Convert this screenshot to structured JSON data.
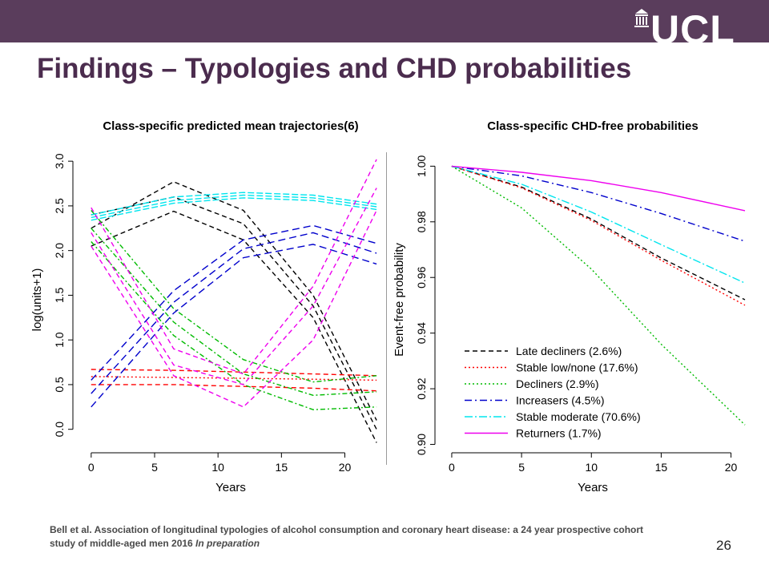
{
  "slide": {
    "title": "Findings – Typologies and CHD probabilities",
    "logo_text": "UCL",
    "page_number": "26",
    "citation_main": "Bell et al. Association of longitudinal typologies of alcohol consumption and coronary heart disease: a 24 year prospective cohort study of middle-aged men 2016 ",
    "citation_italic": "In preparation"
  },
  "chart_data": [
    {
      "type": "line",
      "title": "Class-specific predicted mean trajectories(6)",
      "xlabel": "Years",
      "ylabel": "log(units+1)",
      "xlim": [
        -1,
        23
      ],
      "ylim": [
        -0.2,
        3.1
      ],
      "xticks": [
        0,
        5,
        10,
        15,
        20
      ],
      "yticks": [
        0.0,
        0.5,
        1.0,
        1.5,
        2.0,
        2.5,
        3.0
      ],
      "ytick_labels": [
        "0.0",
        "0.5",
        "1.0",
        "1.5",
        "2.0",
        "2.5",
        "3.0"
      ],
      "grid": false,
      "series": [
        {
          "color": "#000000",
          "dash": "6,4",
          "x": [
            0,
            6.5,
            12,
            17.5,
            22.5
          ],
          "y": [
            2.25,
            2.77,
            2.45,
            1.5,
            0.1
          ]
        },
        {
          "color": "#000000",
          "dash": "6,4",
          "x": [
            0,
            6.5,
            12,
            17.5,
            22.5
          ],
          "y": [
            2.05,
            2.44,
            2.12,
            1.25,
            -0.15
          ]
        },
        {
          "color": "#000000",
          "dash": "6,4",
          "x": [
            0,
            6.5,
            12,
            17.5,
            22.5
          ],
          "y": [
            2.4,
            2.6,
            2.3,
            1.38,
            0.0
          ]
        },
        {
          "color": "#ff0000",
          "dash": "6,4",
          "x": [
            0,
            6.5,
            12,
            17.5,
            22.5
          ],
          "y": [
            0.67,
            0.66,
            0.64,
            0.62,
            0.6
          ]
        },
        {
          "color": "#ff0000",
          "dash": "2,3",
          "x": [
            0,
            6.5,
            12,
            17.5,
            22.5
          ],
          "y": [
            0.59,
            0.58,
            0.57,
            0.56,
            0.55
          ]
        },
        {
          "color": "#ff0000",
          "dash": "6,4",
          "x": [
            0,
            6.5,
            12,
            17.5,
            22.5
          ],
          "y": [
            0.5,
            0.5,
            0.48,
            0.46,
            0.43
          ]
        },
        {
          "color": "#00bb00",
          "dash": "6,3,2,3",
          "x": [
            0,
            6.5,
            12,
            17.5,
            22.5
          ],
          "y": [
            2.45,
            1.35,
            0.78,
            0.53,
            0.6
          ]
        },
        {
          "color": "#00bb00",
          "dash": "6,3,2,3",
          "x": [
            0,
            6.5,
            12,
            17.5,
            22.5
          ],
          "y": [
            2.25,
            1.2,
            0.62,
            0.38,
            0.42
          ]
        },
        {
          "color": "#00bb00",
          "dash": "6,3,2,3",
          "x": [
            0,
            6.5,
            12,
            17.5,
            22.5
          ],
          "y": [
            2.1,
            1.05,
            0.5,
            0.22,
            0.25
          ]
        },
        {
          "color": "#0000cc",
          "dash": "9,5",
          "x": [
            0,
            6.5,
            12,
            17.5,
            22.5
          ],
          "y": [
            0.55,
            1.55,
            2.12,
            2.28,
            2.08
          ]
        },
        {
          "color": "#0000cc",
          "dash": "9,5",
          "x": [
            0,
            6.5,
            12,
            17.5,
            22.5
          ],
          "y": [
            0.4,
            1.42,
            2.02,
            2.2,
            1.97
          ]
        },
        {
          "color": "#0000cc",
          "dash": "9,5",
          "x": [
            0,
            6.5,
            12,
            17.5,
            22.5
          ],
          "y": [
            0.25,
            1.3,
            1.92,
            2.07,
            1.85
          ]
        },
        {
          "color": "#00e5ee",
          "dash": "8,3",
          "x": [
            0,
            6.5,
            12,
            17.5,
            22.5
          ],
          "y": [
            2.4,
            2.6,
            2.65,
            2.62,
            2.52
          ]
        },
        {
          "color": "#00e5ee",
          "dash": "8,3",
          "x": [
            0,
            6.5,
            12,
            17.5,
            22.5
          ],
          "y": [
            2.37,
            2.56,
            2.62,
            2.59,
            2.49
          ]
        },
        {
          "color": "#00e5ee",
          "dash": "8,3",
          "x": [
            0,
            6.5,
            12,
            17.5,
            22.5
          ],
          "y": [
            2.34,
            2.53,
            2.59,
            2.56,
            2.46
          ]
        },
        {
          "color": "#ee00ee",
          "dash": "6,4",
          "x": [
            0,
            6.5,
            12,
            17.5,
            22.5
          ],
          "y": [
            2.48,
            0.9,
            0.62,
            1.6,
            3.02
          ]
        },
        {
          "color": "#ee00ee",
          "dash": "6,4",
          "x": [
            0,
            6.5,
            12,
            17.5,
            22.5
          ],
          "y": [
            2.2,
            0.72,
            0.5,
            1.38,
            2.7
          ]
        },
        {
          "color": "#ee00ee",
          "dash": "6,4",
          "x": [
            0,
            6.5,
            12,
            17.5,
            22.5
          ],
          "y": [
            2.05,
            0.6,
            0.25,
            1.0,
            2.45
          ]
        }
      ]
    },
    {
      "type": "line",
      "title": "Class-specific CHD-free probabilities",
      "xlabel": "Years",
      "ylabel": "Event-free probability",
      "xlim": [
        -0.8,
        21
      ],
      "ylim": [
        0.899,
        1.005
      ],
      "xticks": [
        0,
        5,
        10,
        15,
        20
      ],
      "yticks": [
        0.9,
        0.92,
        0.94,
        0.96,
        0.98,
        1.0
      ],
      "ytick_labels": [
        "0.90",
        "0.92",
        "0.94",
        "0.96",
        "0.98",
        "1.00"
      ],
      "grid": false,
      "legend_position": "bottom-left",
      "series": [
        {
          "name": "Late decliners (2.6%)",
          "color": "#000000",
          "dash": "6,4",
          "x": [
            0,
            5,
            10,
            15,
            21
          ],
          "y": [
            1.0,
            0.9925,
            0.981,
            0.967,
            0.952
          ]
        },
        {
          "name": "Stable low/none (17.6%)",
          "color": "#ff0000",
          "dash": "2,3",
          "x": [
            0,
            5,
            10,
            15,
            21
          ],
          "y": [
            1.0,
            0.9922,
            0.9805,
            0.9662,
            0.95
          ]
        },
        {
          "name": "Decliners (2.9%)",
          "color": "#00bb00",
          "dash": "2,3",
          "x": [
            0,
            5,
            10,
            15,
            21
          ],
          "y": [
            1.0,
            0.985,
            0.963,
            0.936,
            0.907
          ]
        },
        {
          "name": "Increasers (4.5%)",
          "color": "#0000cc",
          "dash": "9,4,2,4",
          "x": [
            0,
            5,
            10,
            15,
            21
          ],
          "y": [
            1.0,
            0.9965,
            0.9905,
            0.983,
            0.973
          ]
        },
        {
          "name": "Stable moderate (70.6%)",
          "color": "#00e5ee",
          "dash": "10,3,2,3",
          "x": [
            0,
            5,
            10,
            15,
            21
          ],
          "y": [
            1.0,
            0.9935,
            0.9835,
            0.9718,
            0.958
          ]
        },
        {
          "name": "Returners (1.7%)",
          "color": "#ee00ee",
          "dash": "",
          "x": [
            0,
            5,
            10,
            15,
            21
          ],
          "y": [
            1.0,
            0.9978,
            0.9948,
            0.9905,
            0.984
          ]
        }
      ]
    }
  ]
}
